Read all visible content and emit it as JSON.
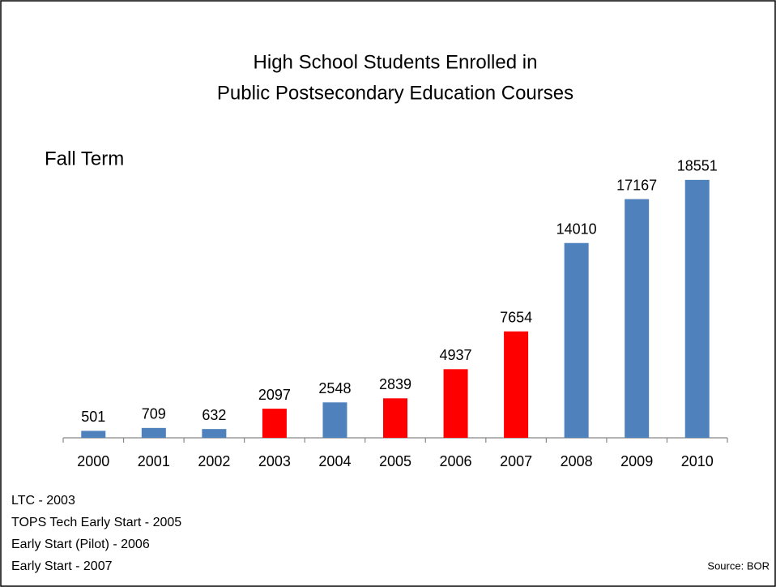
{
  "chart_data": {
    "type": "bar",
    "title": [
      "High School Students Enrolled in",
      "Public Postsecondary Education Courses"
    ],
    "subtitle": "Fall Term",
    "categories": [
      "2000",
      "2001",
      "2002",
      "2003",
      "2004",
      "2005",
      "2006",
      "2007",
      "2008",
      "2009",
      "2010"
    ],
    "values": [
      501,
      709,
      632,
      2097,
      2548,
      2839,
      4937,
      7654,
      14010,
      17167,
      18551
    ],
    "colors": [
      "#4f81bd",
      "#4f81bd",
      "#4f81bd",
      "#ff0000",
      "#4f81bd",
      "#ff0000",
      "#ff0000",
      "#ff0000",
      "#4f81bd",
      "#4f81bd",
      "#4f81bd"
    ],
    "ylim": [
      0,
      20000
    ],
    "annotations": [
      "LTC - 2003",
      "TOPS Tech Early Start - 2005",
      "Early Start (Pilot) - 2006",
      "Early Start - 2007"
    ],
    "source": "Source: BOR"
  }
}
